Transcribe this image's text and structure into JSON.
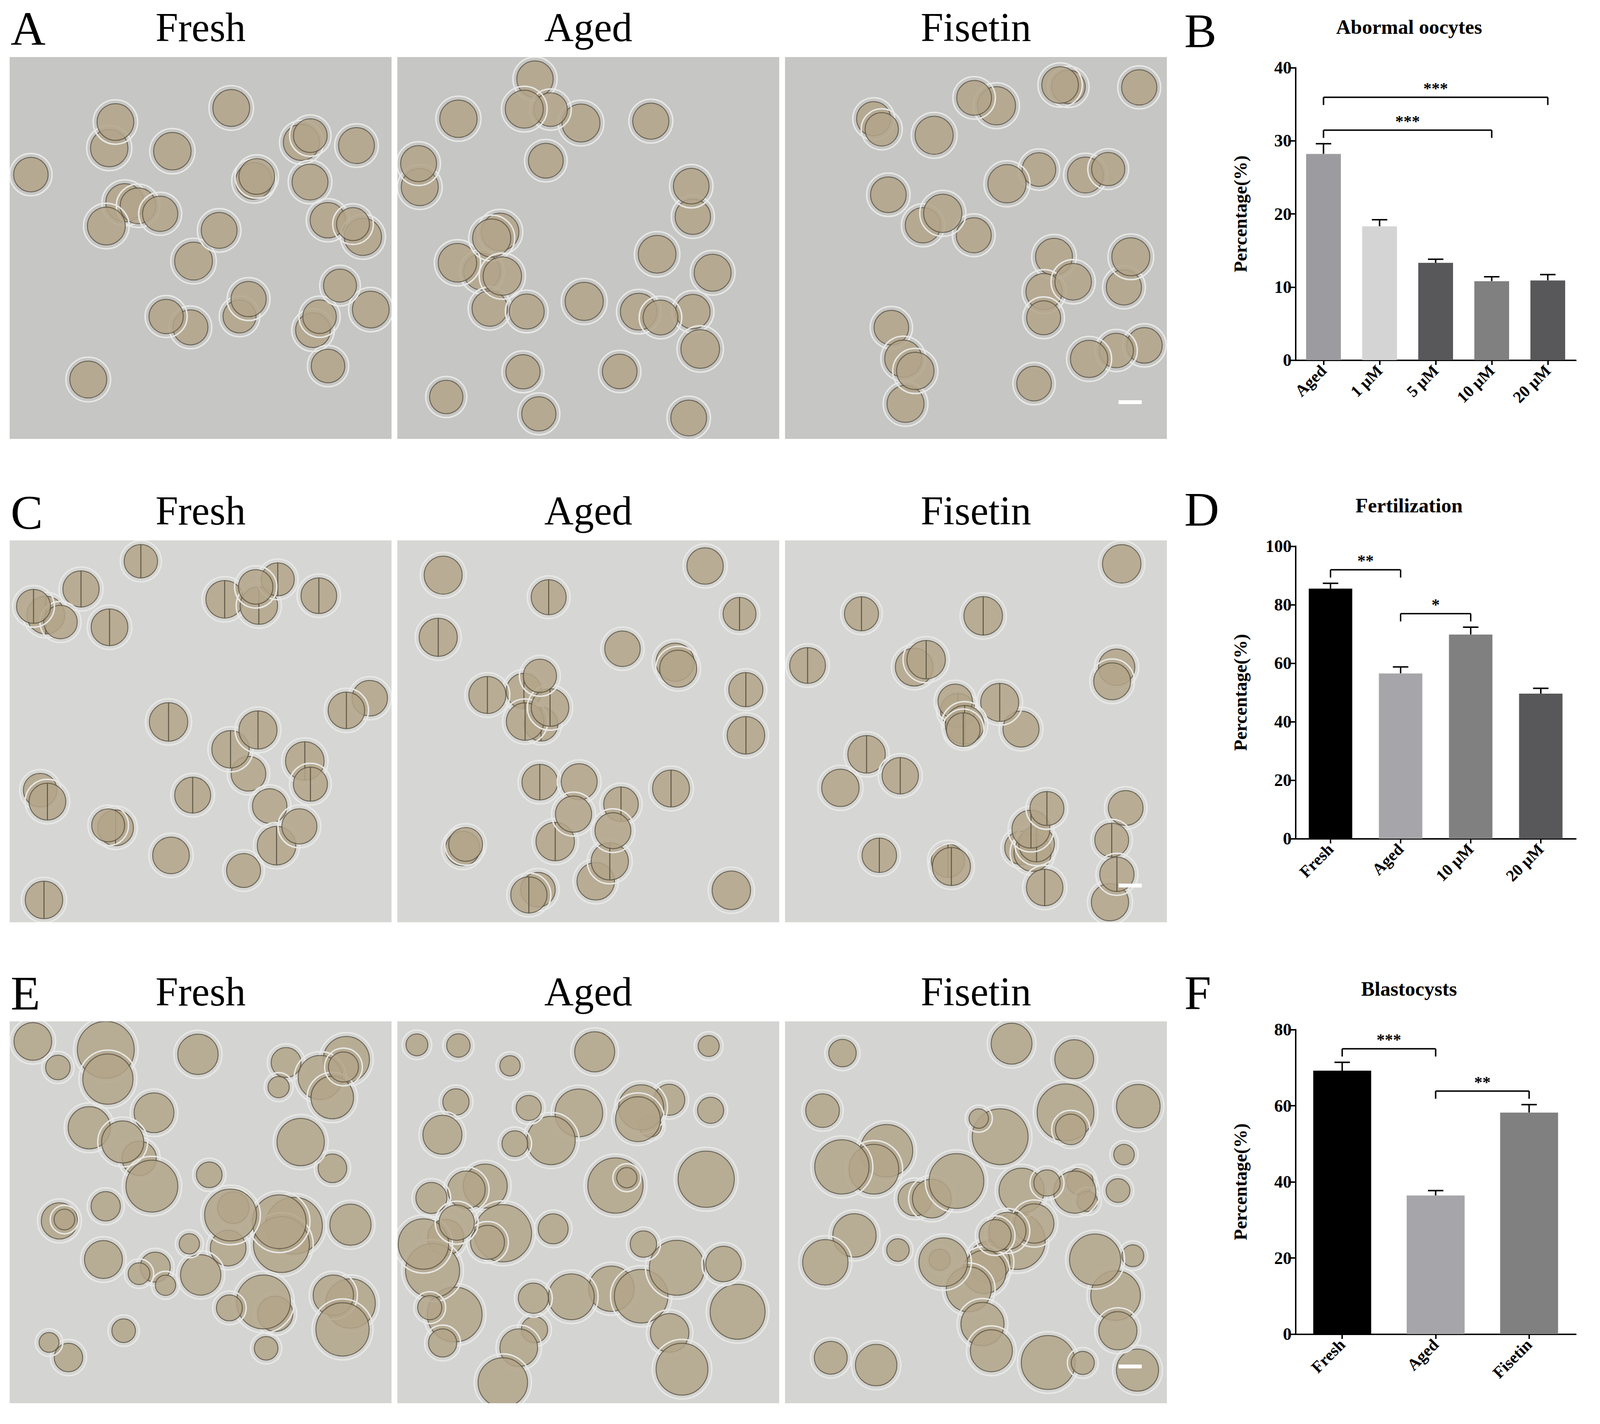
{
  "image_rows": [
    {
      "panel_label": "A",
      "titles": [
        "Fresh",
        "Aged",
        "Fisetin"
      ]
    },
    {
      "panel_label": "C",
      "titles": [
        "Fresh",
        "Aged",
        "Fisetin"
      ]
    },
    {
      "panel_label": "E",
      "titles": [
        "Fresh",
        "Aged",
        "Fisetin"
      ]
    }
  ],
  "chart_data": [
    {
      "panel_label": "B",
      "type": "bar",
      "title": "Abormal oocytes",
      "y_label": "Percentage(%)",
      "categories": [
        "Aged",
        "1 μM",
        "5 μM",
        "10 μM",
        "20 μM"
      ],
      "values": [
        28.2,
        18.3,
        13.3,
        10.8,
        10.9
      ],
      "errors": [
        1.4,
        0.9,
        0.5,
        0.6,
        0.8
      ],
      "colors": [
        "#9c9ca0",
        "#d4d4d4",
        "#58585a",
        "#808080",
        "#58585a"
      ],
      "ylim": [
        0,
        40
      ],
      "yticks": [
        0,
        10,
        20,
        30,
        40
      ],
      "grid": false,
      "annotations": [
        {
          "from": "Aged",
          "to": "10 μM",
          "label": "***"
        },
        {
          "from": "Aged",
          "to": "20 μM",
          "label": "***"
        }
      ]
    },
    {
      "panel_label": "D",
      "type": "bar",
      "title": "Fertilization",
      "y_label": "Percentage(%)",
      "categories": [
        "Fresh",
        "Aged",
        "10 μM",
        "20 μM"
      ],
      "values": [
        85.5,
        56.5,
        69.8,
        49.6
      ],
      "errors": [
        1.8,
        2.2,
        2.5,
        1.8
      ],
      "colors": [
        "#000000",
        "#a6a6aa",
        "#808080",
        "#58585a"
      ],
      "ylim": [
        0,
        100
      ],
      "yticks": [
        0,
        20,
        40,
        60,
        80,
        100
      ],
      "grid": false,
      "annotations": [
        {
          "from": "Fresh",
          "to": "Aged",
          "label": "**"
        },
        {
          "from": "Aged",
          "to": "10 μM",
          "label": "*"
        }
      ]
    },
    {
      "panel_label": "F",
      "type": "bar",
      "title": "Blastocysts",
      "y_label": "Percentage(%)",
      "categories": [
        "Fresh",
        "Aged",
        "Fisetin"
      ],
      "values": [
        69.2,
        36.4,
        58.2
      ],
      "errors": [
        2.2,
        1.3,
        2.1
      ],
      "colors": [
        "#000000",
        "#a6a6aa",
        "#808080"
      ],
      "ylim": [
        0,
        80
      ],
      "yticks": [
        0,
        20,
        40,
        60,
        80
      ],
      "grid": false,
      "annotations": [
        {
          "from": "Fresh",
          "to": "Aged",
          "label": "***"
        },
        {
          "from": "Aged",
          "to": "Fisetin",
          "label": "**"
        }
      ]
    }
  ]
}
